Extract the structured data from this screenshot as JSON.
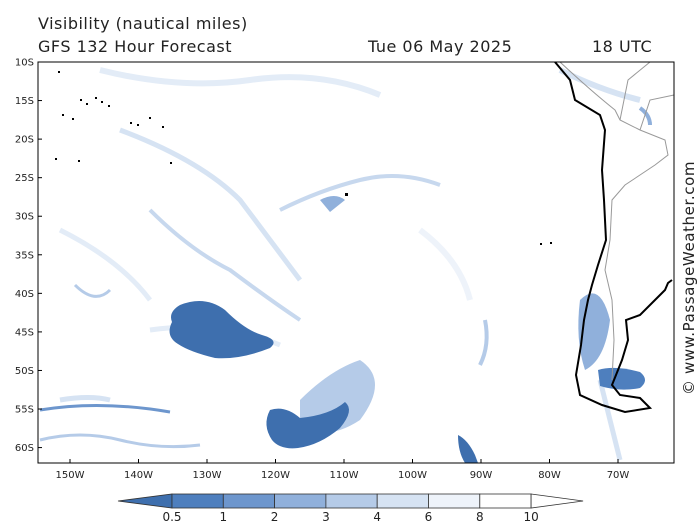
{
  "header": {
    "title": "Visibility (nautical miles)",
    "model": "GFS 132 Hour Forecast",
    "date": "Tue 06 May 2025",
    "time": "18 UTC"
  },
  "watermark": "© www.PassageWeather.com",
  "map_axes": {
    "lat_labels": [
      "10S",
      "15S",
      "20S",
      "25S",
      "30S",
      "35S",
      "40S",
      "45S",
      "50S",
      "55S",
      "60S"
    ],
    "lon_labels": [
      "150W",
      "140W",
      "130W",
      "120W",
      "110W",
      "100W",
      "90W",
      "80W",
      "70W"
    ]
  },
  "colorbar": {
    "labels": [
      "0.5",
      "1",
      "2",
      "3",
      "4",
      "6",
      "8",
      "10"
    ],
    "colors": [
      "#3e6fae",
      "#4e7fbe",
      "#6d96cd",
      "#90b0db",
      "#b5cbe8",
      "#d6e3f3",
      "#eef3fa",
      "#ffffff"
    ]
  },
  "colors": {
    "coastline": "#000000",
    "border": "#999999",
    "low_vis": "#3e6fae",
    "mid_vis": "#90b0db",
    "light_vis": "#d6e3f3"
  }
}
